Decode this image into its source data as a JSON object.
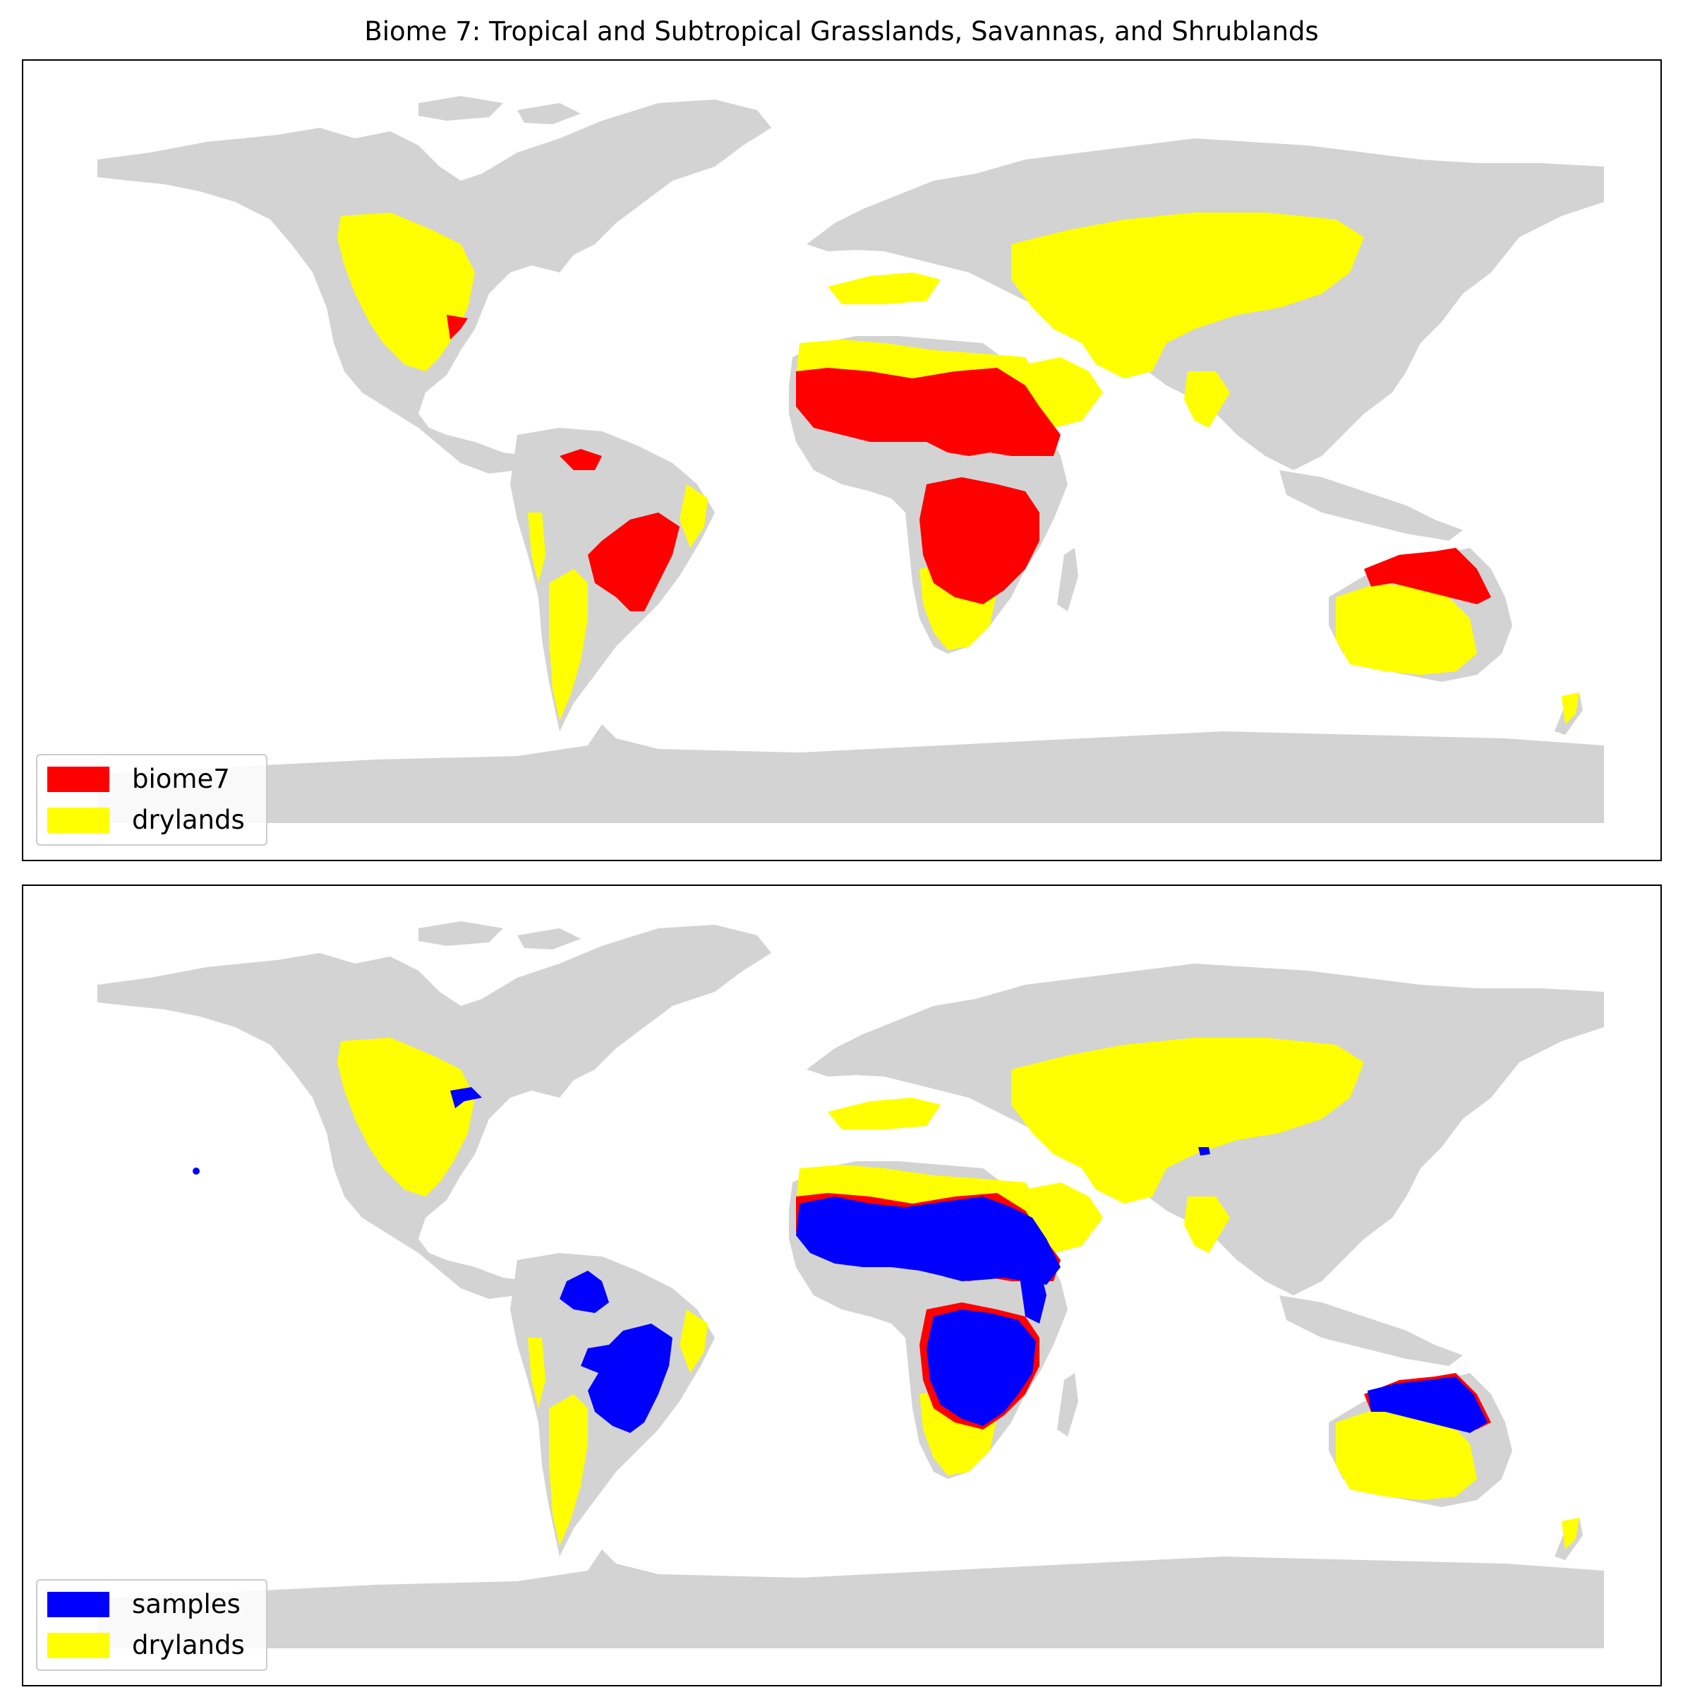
{
  "figure": {
    "title": "Biome 7: Tropical and Subtropical Grasslands, Savannas, and Shrublands"
  },
  "colors": {
    "land": "#d3d3d3",
    "drylands": "#ffff00",
    "biome7": "#ff0000",
    "samples": "#0000ff",
    "frame": "#000000"
  },
  "panels": [
    {
      "id": "top",
      "legend": [
        {
          "label": "biome7",
          "color": "#ff0000"
        },
        {
          "label": "drylands",
          "color": "#ffff00"
        }
      ]
    },
    {
      "id": "bottom",
      "legend": [
        {
          "label": "samples",
          "color": "#0000ff"
        },
        {
          "label": "drylands",
          "color": "#ffff00"
        }
      ]
    }
  ]
}
